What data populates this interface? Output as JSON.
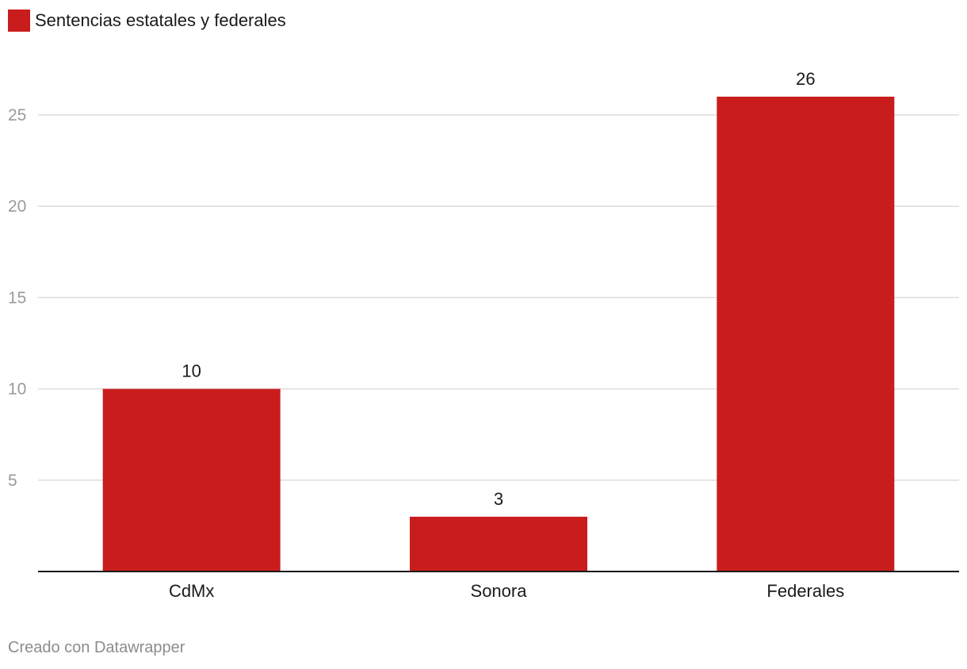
{
  "colors": {
    "bar": "#c91d1d",
    "grid": "#dddddd",
    "axis": "#1a1a1a",
    "tick": "#9a9a9a",
    "text": "#1a1a1a"
  },
  "chart_data": {
    "type": "bar",
    "categories": [
      "CdMx",
      "Sonora",
      "Federales"
    ],
    "series": [
      {
        "name": "Sentencias estatales y federales",
        "values": [
          10,
          3,
          26
        ]
      }
    ],
    "data_labels": [
      "10",
      "3",
      "26"
    ],
    "yticks": [
      5,
      10,
      15,
      20,
      25
    ],
    "ylim": [
      0,
      27.5
    ],
    "grid": true,
    "legend": "top-left"
  },
  "credit": "Creado con Datawrapper"
}
